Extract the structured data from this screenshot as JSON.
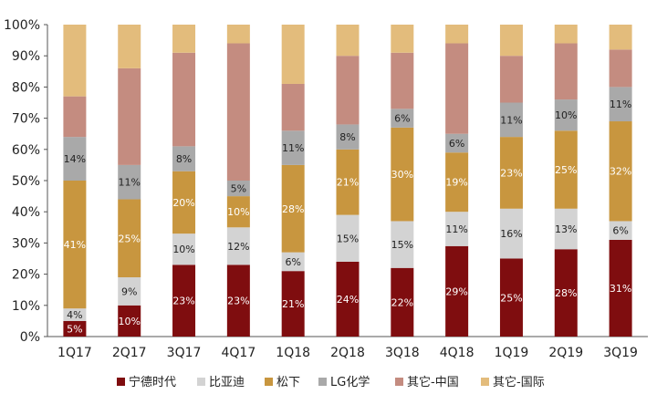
{
  "chart_data": {
    "type": "bar",
    "stacked": true,
    "categories": [
      "1Q17",
      "2Q17",
      "3Q17",
      "4Q17",
      "1Q18",
      "2Q18",
      "3Q18",
      "4Q18",
      "1Q19",
      "2Q19",
      "3Q19"
    ],
    "ylim": [
      0,
      100
    ],
    "y_ticks": [
      "0%",
      "10%",
      "20%",
      "30%",
      "40%",
      "50%",
      "60%",
      "70%",
      "80%",
      "90%",
      "100%"
    ],
    "grid": false,
    "legend_position": "bottom",
    "series": [
      {
        "name": "宁德时代",
        "color": "#7f0d0f",
        "label_color": "#ffffff",
        "values": [
          5,
          10,
          23,
          23,
          21,
          24,
          22,
          29,
          25,
          28,
          31
        ],
        "labels": [
          "5%",
          "10%",
          "23%",
          "23%",
          "21%",
          "24%",
          "22%",
          "29%",
          "25%",
          "28%",
          "31%"
        ]
      },
      {
        "name": "比亚迪",
        "color": "#d3d3d3",
        "label_color": "#222222",
        "values": [
          4,
          9,
          10,
          12,
          6,
          15,
          15,
          11,
          16,
          13,
          6
        ],
        "labels": [
          "4%",
          "9%",
          "10%",
          "12%",
          "6%",
          "15%",
          "15%",
          "11%",
          "16%",
          "13%",
          "6%"
        ]
      },
      {
        "name": "松下",
        "color": "#c8963f",
        "label_color": "#ffffff",
        "values": [
          41,
          25,
          20,
          10,
          28,
          21,
          30,
          19,
          23,
          25,
          32
        ],
        "labels": [
          "41%",
          "25%",
          "20%",
          "10%",
          "28%",
          "21%",
          "30%",
          "19%",
          "23%",
          "25%",
          "32%"
        ]
      },
      {
        "name": "LG化学",
        "color": "#a9a9a9",
        "label_color": "#222222",
        "values": [
          14,
          11,
          8,
          5,
          11,
          8,
          6,
          6,
          11,
          10,
          11
        ],
        "labels": [
          "14%",
          "11%",
          "8%",
          "5%",
          "11%",
          "8%",
          "6%",
          "6%",
          "11%",
          "10%",
          "11%"
        ]
      },
      {
        "name": "其它-中国",
        "color": "#c48c80",
        "label_color": "#222222",
        "values": [
          13,
          31,
          30,
          44,
          15,
          22,
          18,
          29,
          15,
          18,
          12
        ],
        "labels": [
          "",
          "",
          "",
          "",
          "",
          "",
          "",
          "",
          "",
          "",
          ""
        ]
      },
      {
        "name": "其它-国际",
        "color": "#e3bc7c",
        "label_color": "#222222",
        "values": [
          23,
          14,
          9,
          6,
          19,
          10,
          9,
          6,
          10,
          6,
          8
        ],
        "labels": [
          "",
          "",
          "",
          "",
          "",
          "",
          "",
          "",
          "",
          "",
          ""
        ]
      }
    ]
  }
}
